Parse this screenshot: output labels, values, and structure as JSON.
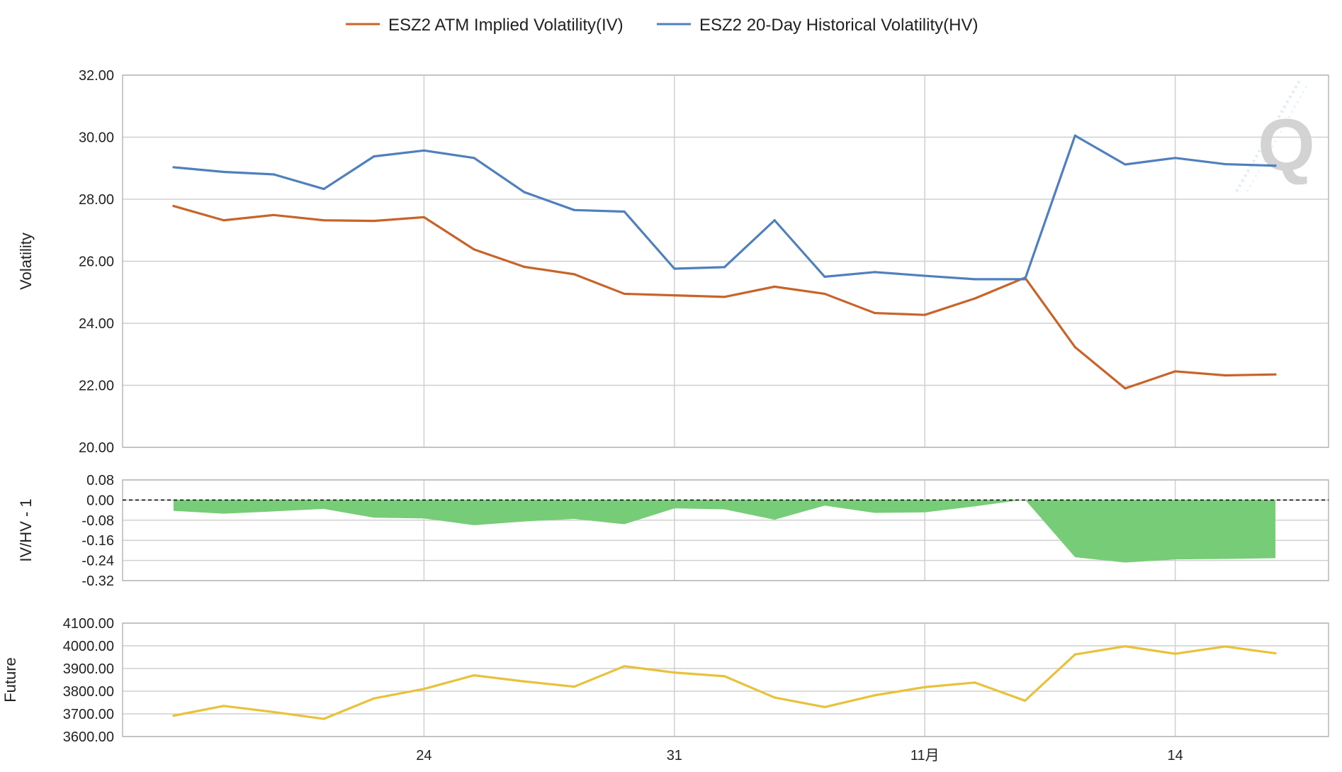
{
  "chart_data": [
    {
      "type": "line",
      "panel": "volatility",
      "ylabel": "Volatility",
      "ylim": [
        20,
        32
      ],
      "yticks": [
        "32.00",
        "30.00",
        "28.00",
        "26.00",
        "24.00",
        "22.00",
        "20.00"
      ],
      "grid": true,
      "legend": "top-center",
      "series": [
        {
          "name": "ESZ2 ATM Implied Volatility(IV)",
          "color": "#c8642a",
          "values": [
            27.78,
            27.32,
            27.49,
            27.32,
            27.3,
            27.42,
            26.38,
            25.82,
            25.58,
            24.95,
            24.9,
            24.85,
            25.18,
            24.95,
            24.33,
            24.27,
            24.8,
            25.47,
            23.23,
            21.9,
            22.45,
            22.32,
            22.35
          ]
        },
        {
          "name": "ESZ2 20-Day Historical Volatility(HV)",
          "color": "#4f80bd",
          "values": [
            29.03,
            28.88,
            28.8,
            28.33,
            29.38,
            29.57,
            29.33,
            28.23,
            27.65,
            27.6,
            25.76,
            25.81,
            27.32,
            25.5,
            25.65,
            25.53,
            25.42,
            25.42,
            30.05,
            29.12,
            29.33,
            29.13,
            29.08
          ]
        }
      ]
    },
    {
      "type": "area",
      "panel": "ratio",
      "ylabel": "IV/HV - 1",
      "ylim": [
        -0.32,
        0.08
      ],
      "yticks": [
        "0.08",
        "0.00",
        "-0.08",
        "-0.16",
        "-0.24",
        "-0.32"
      ],
      "grid": true,
      "zero_line": "dashed",
      "fill_color": "#77cc77",
      "values": [
        -0.043,
        -0.054,
        -0.045,
        -0.035,
        -0.07,
        -0.073,
        -0.1,
        -0.085,
        -0.075,
        -0.096,
        -0.033,
        -0.037,
        -0.078,
        -0.022,
        -0.051,
        -0.049,
        -0.025,
        0.002,
        -0.227,
        -0.248,
        -0.236,
        -0.234,
        -0.231
      ]
    },
    {
      "type": "line",
      "panel": "future",
      "ylabel": "Future",
      "ylim": [
        3600,
        4100
      ],
      "yticks": [
        "4100.00",
        "4000.00",
        "3900.00",
        "3800.00",
        "3700.00",
        "3600.00"
      ],
      "grid": true,
      "series": [
        {
          "color": "#e8c23a",
          "values": [
            3692,
            3735,
            3708,
            3678,
            3768,
            3810,
            3870,
            3843,
            3820,
            3910,
            3882,
            3866,
            3772,
            3730,
            3782,
            3818,
            3838,
            3758,
            3962,
            3998,
            3965,
            3997,
            3967
          ]
        }
      ]
    }
  ],
  "x_axis": {
    "ticks": [
      {
        "label": "24",
        "index": 5
      },
      {
        "label": "31",
        "index": 10
      },
      {
        "label": "11月",
        "index": 15
      },
      {
        "label": "14",
        "index": 20
      }
    ]
  },
  "watermark": {
    "text": "Q"
  }
}
